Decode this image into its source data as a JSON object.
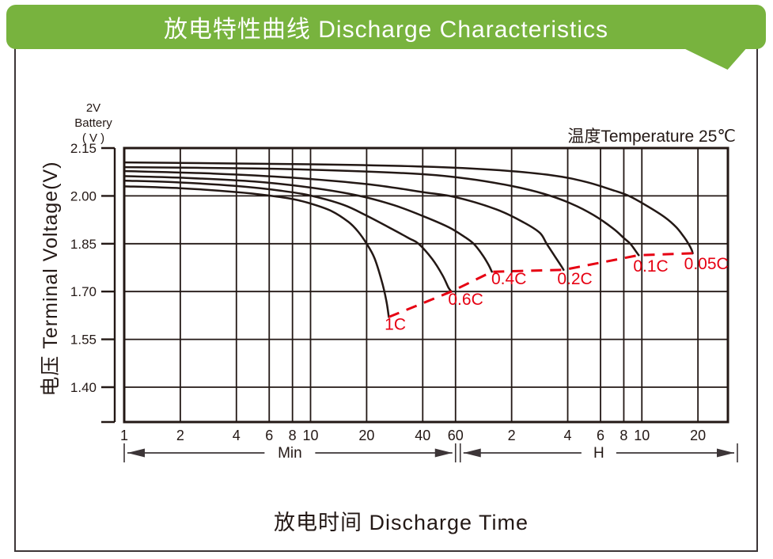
{
  "header": {
    "title": "放电特性曲线  Discharge Characteristics"
  },
  "chart": {
    "battery_label_lines": [
      "2V",
      "Battery",
      "( V )"
    ],
    "temperature_label": "温度Temperature 25℃",
    "y_axis_label": "电压  Terminal Voltage(V)",
    "x_axis_label": "放电时间  Discharge Time",
    "min_arrow_label": "Min",
    "h_arrow_label": "H",
    "colors": {
      "banner_green": "#78b33e",
      "curve_black": "#231815",
      "rate_line_red": "#e60012",
      "border_gray": "#3c3537"
    }
  },
  "chart_data": {
    "type": "line",
    "title": "放电特性曲线 Discharge Characteristics",
    "xlabel": "放电时间 Discharge Time",
    "ylabel": "电压 Terminal Voltage(V)",
    "annotation": "温度Temperature 25℃",
    "x_scale": "log",
    "x_unit": "minutes",
    "x_sections": {
      "left_label": "Min",
      "right_label": "H",
      "boundary_minutes": 60
    },
    "xlim_minutes": [
      1,
      1750
    ],
    "ylim": [
      1.29,
      2.15
    ],
    "grid": true,
    "x_ticks": [
      {
        "minutes": 1,
        "label": "1"
      },
      {
        "minutes": 2,
        "label": "2"
      },
      {
        "minutes": 4,
        "label": "4"
      },
      {
        "minutes": 6,
        "label": "6"
      },
      {
        "minutes": 8,
        "label": "8"
      },
      {
        "minutes": 10,
        "label": "10"
      },
      {
        "minutes": 20,
        "label": "20"
      },
      {
        "minutes": 40,
        "label": "40"
      },
      {
        "minutes": 60,
        "label": "60"
      },
      {
        "minutes": 120,
        "label": "2"
      },
      {
        "minutes": 240,
        "label": "4"
      },
      {
        "minutes": 360,
        "label": "6"
      },
      {
        "minutes": 480,
        "label": "8"
      },
      {
        "minutes": 600,
        "label": "10"
      },
      {
        "minutes": 1200,
        "label": "20"
      }
    ],
    "y_ticks": [
      {
        "v": 2.15,
        "label": "2.15"
      },
      {
        "v": 2.0,
        "label": "2.00"
      },
      {
        "v": 1.85,
        "label": "1.85"
      },
      {
        "v": 1.7,
        "label": "1.70"
      },
      {
        "v": 1.55,
        "label": "1.55"
      },
      {
        "v": 1.4,
        "label": "1.40"
      }
    ],
    "series": [
      {
        "name": "1C",
        "points": [
          [
            1,
            2.03
          ],
          [
            2,
            2.024
          ],
          [
            4,
            2.012
          ],
          [
            6,
            2.001
          ],
          [
            8,
            1.99
          ],
          [
            10,
            1.976
          ],
          [
            13,
            1.952
          ],
          [
            16,
            1.918
          ],
          [
            18,
            1.888
          ],
          [
            20,
            1.85
          ],
          [
            22,
            1.806
          ],
          [
            24,
            1.737
          ],
          [
            25.5,
            1.672
          ],
          [
            26.3,
            1.62
          ]
        ]
      },
      {
        "name": "0.6C",
        "points": [
          [
            1,
            2.048
          ],
          [
            2,
            2.042
          ],
          [
            4,
            2.031
          ],
          [
            7,
            2.016
          ],
          [
            10,
            2.001
          ],
          [
            15,
            1.972
          ],
          [
            20,
            1.938
          ],
          [
            28,
            1.893
          ],
          [
            34,
            1.866
          ],
          [
            38,
            1.85
          ],
          [
            45,
            1.802
          ],
          [
            51,
            1.752
          ],
          [
            55,
            1.712
          ],
          [
            57,
            1.7
          ]
        ]
      },
      {
        "name": "0.4C",
        "points": [
          [
            1,
            2.062
          ],
          [
            2,
            2.057
          ],
          [
            5,
            2.045
          ],
          [
            10,
            2.026
          ],
          [
            18,
            2.001
          ],
          [
            28,
            1.971
          ],
          [
            40,
            1.937
          ],
          [
            55,
            1.902
          ],
          [
            68,
            1.869
          ],
          [
            75,
            1.85
          ],
          [
            83,
            1.818
          ],
          [
            90,
            1.785
          ],
          [
            94,
            1.762
          ]
        ]
      },
      {
        "name": "0.2C",
        "points": [
          [
            1,
            2.078
          ],
          [
            3,
            2.07
          ],
          [
            8,
            2.057
          ],
          [
            20,
            2.037
          ],
          [
            40,
            2.012
          ],
          [
            60,
            1.996
          ],
          [
            100,
            1.957
          ],
          [
            140,
            1.916
          ],
          [
            170,
            1.884
          ],
          [
            185,
            1.85
          ],
          [
            205,
            1.81
          ],
          [
            220,
            1.783
          ],
          [
            228,
            1.768
          ]
        ]
      },
      {
        "name": "0.1C",
        "points": [
          [
            1,
            2.09
          ],
          [
            5,
            2.086
          ],
          [
            15,
            2.079
          ],
          [
            40,
            2.068
          ],
          [
            70,
            2.054
          ],
          [
            120,
            2.031
          ],
          [
            180,
            2.006
          ],
          [
            250,
            1.976
          ],
          [
            330,
            1.94
          ],
          [
            420,
            1.898
          ],
          [
            480,
            1.868
          ],
          [
            520,
            1.85
          ],
          [
            550,
            1.831
          ],
          [
            577,
            1.814
          ]
        ]
      },
      {
        "name": "0.05C",
        "points": [
          [
            1,
            2.105
          ],
          [
            10,
            2.099
          ],
          [
            40,
            2.092
          ],
          [
            100,
            2.081
          ],
          [
            200,
            2.064
          ],
          [
            300,
            2.044
          ],
          [
            430,
            2.016
          ],
          [
            520,
            1.998
          ],
          [
            650,
            1.966
          ],
          [
            800,
            1.932
          ],
          [
            920,
            1.901
          ],
          [
            1010,
            1.871
          ],
          [
            1070,
            1.849
          ],
          [
            1110,
            1.831
          ],
          [
            1124,
            1.82
          ]
        ]
      }
    ],
    "rate_cutoff_line": {
      "style": "dashed",
      "color": "#e60012",
      "points": [
        [
          26.3,
          1.62
        ],
        [
          57,
          1.7
        ],
        [
          94,
          1.762
        ],
        [
          228,
          1.768
        ],
        [
          577,
          1.814
        ],
        [
          1124,
          1.82
        ]
      ]
    },
    "curve_labels": [
      {
        "text": "1C",
        "minutes": 28.5,
        "v": 1.598
      },
      {
        "text": "0.6C",
        "minutes": 68,
        "v": 1.676
      },
      {
        "text": "0.4C",
        "minutes": 116,
        "v": 1.74
      },
      {
        "text": "0.2C",
        "minutes": 262,
        "v": 1.74
      },
      {
        "text": "0.1C",
        "minutes": 670,
        "v": 1.78
      },
      {
        "text": "0.05C",
        "minutes": 1330,
        "v": 1.788
      }
    ]
  }
}
